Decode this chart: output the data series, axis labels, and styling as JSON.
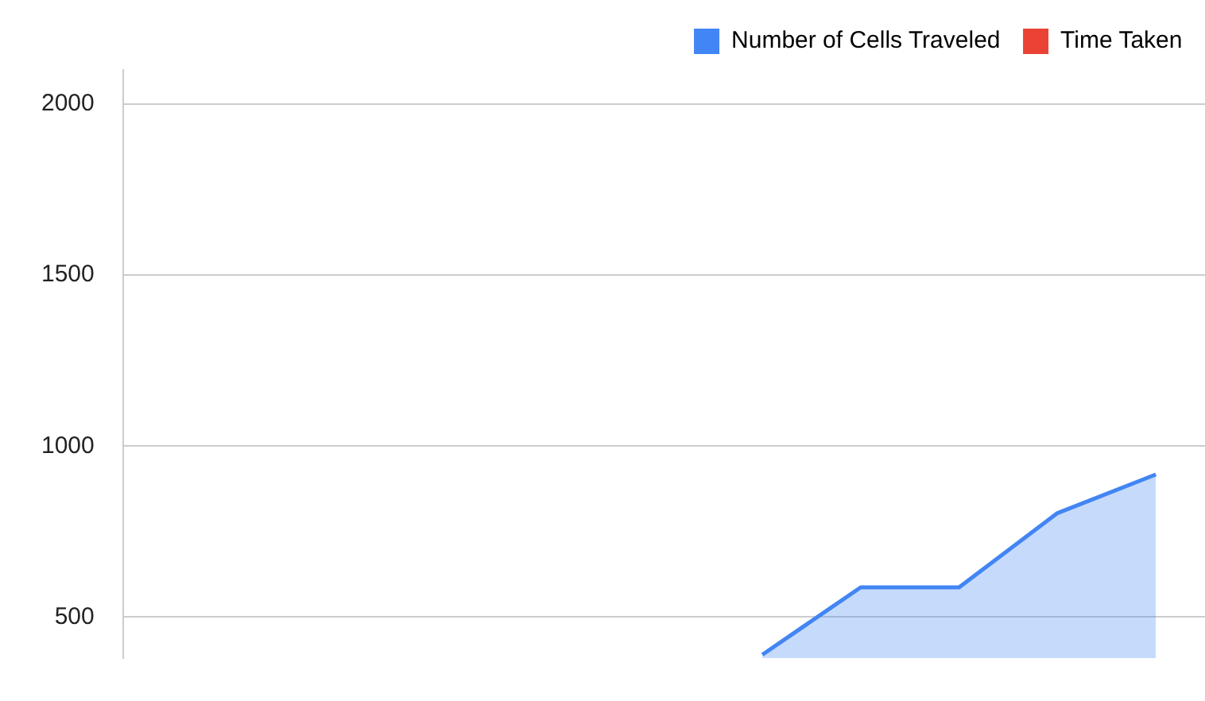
{
  "chart_data": {
    "type": "area",
    "categories": [
      null,
      null,
      null,
      null,
      null,
      null,
      null,
      null,
      null,
      null,
      null
    ],
    "series": [
      {
        "name": "Number of Cells Traveled",
        "color": "#4285f4",
        "values": [
          null,
          null,
          null,
          null,
          null,
          null,
          390,
          587,
          587,
          804,
          917
        ]
      },
      {
        "name": "Time Taken",
        "color": "#ea4335",
        "values": [
          null,
          null,
          null,
          null,
          null,
          null,
          null,
          null,
          null,
          null,
          null
        ]
      }
    ],
    "ylim": [
      380,
      2100
    ],
    "yticks": [
      500,
      1000,
      1500,
      2000
    ],
    "grid": "y",
    "legend": "top right",
    "tick_labels": "y"
  }
}
